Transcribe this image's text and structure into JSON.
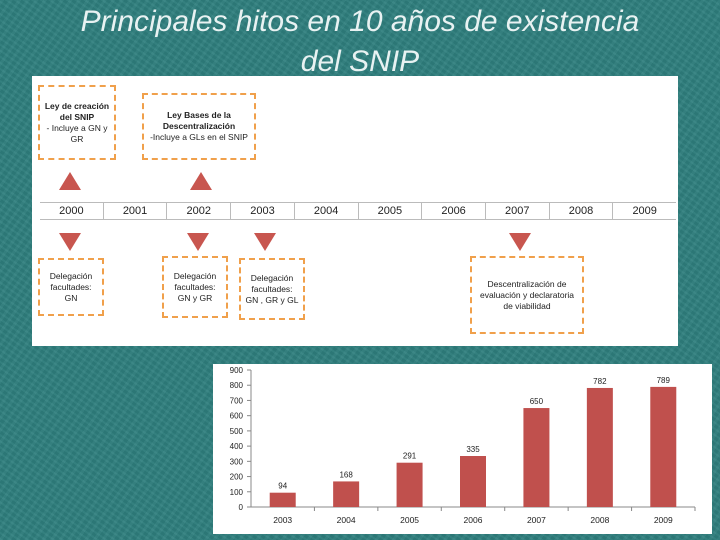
{
  "title_lines": [
    "Principales hitos en 10 años de existencia",
    "del SNIP"
  ],
  "timeline": {
    "years": [
      "2000",
      "2001",
      "2002",
      "2003",
      "2004",
      "2005",
      "2006",
      "2007",
      "2008",
      "2009"
    ],
    "top_boxes": [
      {
        "bold": "Ley de creación del SNIP",
        "text": "- Incluye a GN y GR"
      },
      {
        "bold": "Ley Bases de la Descentralización",
        "text": "-Incluye a GLs en el SNIP"
      }
    ],
    "bottom_boxes": [
      {
        "text": "Delegación facultades: GN"
      },
      {
        "text": "Delegación facultades: GN y GR"
      },
      {
        "text": "Delegación facultades: GN , GR y GL"
      },
      {
        "text": "Descentralización de evaluación y declaratoria de viabilidad"
      }
    ],
    "marker_color": "#c8564f",
    "box_border_color": "#f0a04b"
  },
  "chart_data": {
    "type": "bar",
    "categories": [
      "2003",
      "2004",
      "2005",
      "2006",
      "2007",
      "2008",
      "2009"
    ],
    "values": [
      94,
      168,
      291,
      335,
      650,
      782,
      789
    ],
    "ylim": [
      0,
      900
    ],
    "yticks": [
      0,
      100,
      200,
      300,
      400,
      500,
      600,
      700,
      800,
      900
    ],
    "bar_color": "#c0504d",
    "title": "",
    "xlabel": "",
    "ylabel": ""
  }
}
